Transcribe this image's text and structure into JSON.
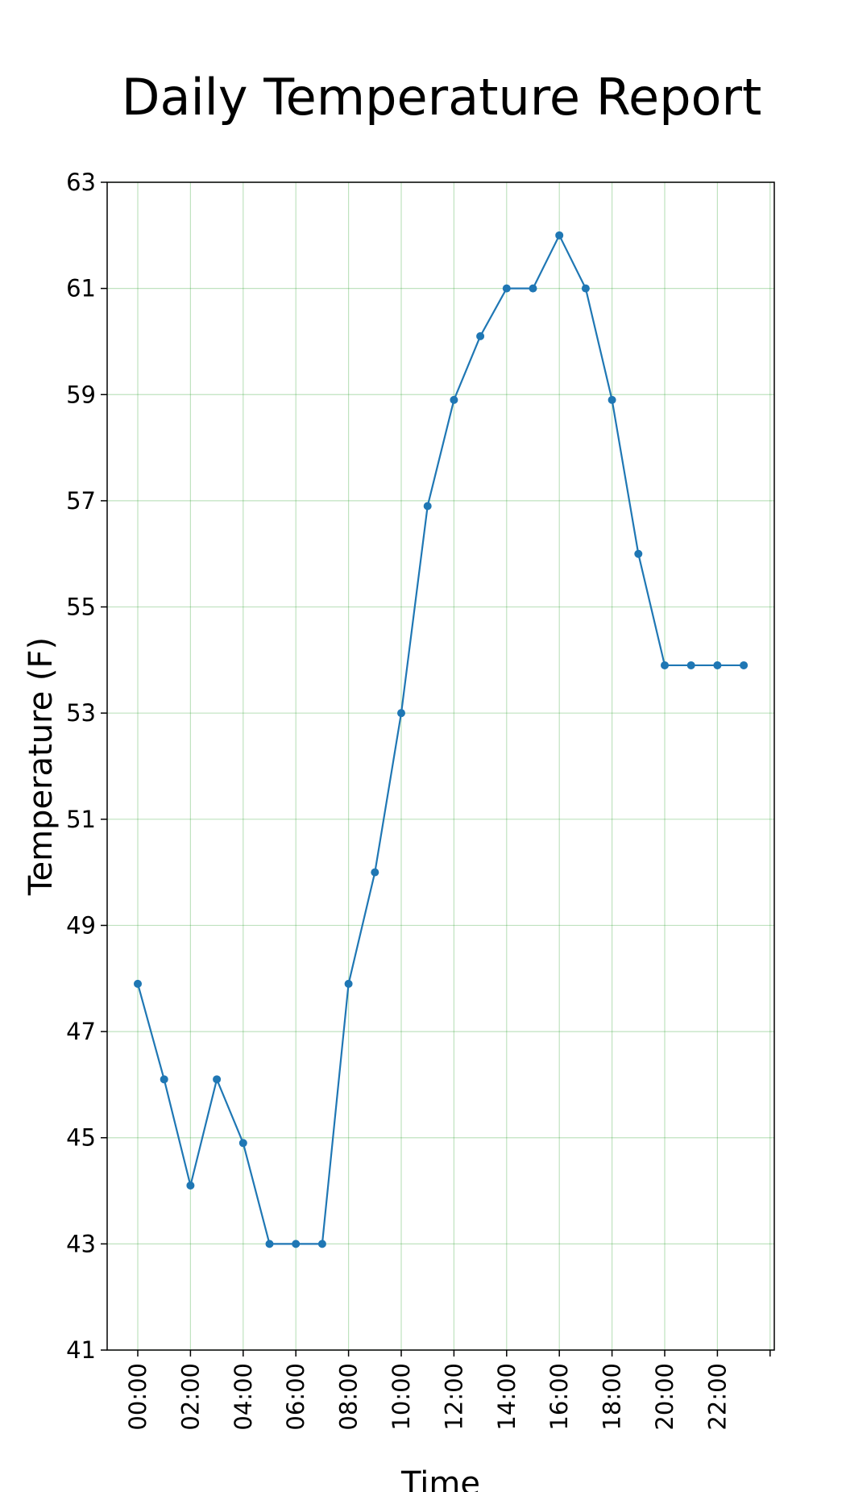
{
  "chart_data": {
    "type": "line",
    "title": "Daily Temperature Report",
    "xlabel": "Time",
    "ylabel": "Temperature (F)",
    "x": [
      "00:00",
      "01:00",
      "02:00",
      "03:00",
      "04:00",
      "05:00",
      "06:00",
      "07:00",
      "08:00",
      "09:00",
      "10:00",
      "11:00",
      "12:00",
      "13:00",
      "14:00",
      "15:00",
      "16:00",
      "17:00",
      "18:00",
      "19:00",
      "20:00",
      "21:00",
      "22:00",
      "23:00"
    ],
    "x_tick_labels": [
      "00:00",
      "02:00",
      "04:00",
      "06:00",
      "08:00",
      "10:00",
      "12:00",
      "14:00",
      "16:00",
      "18:00",
      "20:00",
      "22:00"
    ],
    "y_ticks": [
      41,
      43,
      45,
      47,
      49,
      51,
      53,
      55,
      57,
      59,
      61,
      63
    ],
    "ylim": [
      41,
      63
    ],
    "grid": true,
    "grid_color": "#2ca02c",
    "series": [
      {
        "color": "#1f77b4",
        "values": [
          47.9,
          46.1,
          44.1,
          46.1,
          44.9,
          43.0,
          43.0,
          43.0,
          47.9,
          50.0,
          53.0,
          56.9,
          58.9,
          60.1,
          61.0,
          61.0,
          62.0,
          61.0,
          58.9,
          56.0,
          53.9,
          53.9,
          53.9,
          53.9
        ]
      }
    ]
  }
}
